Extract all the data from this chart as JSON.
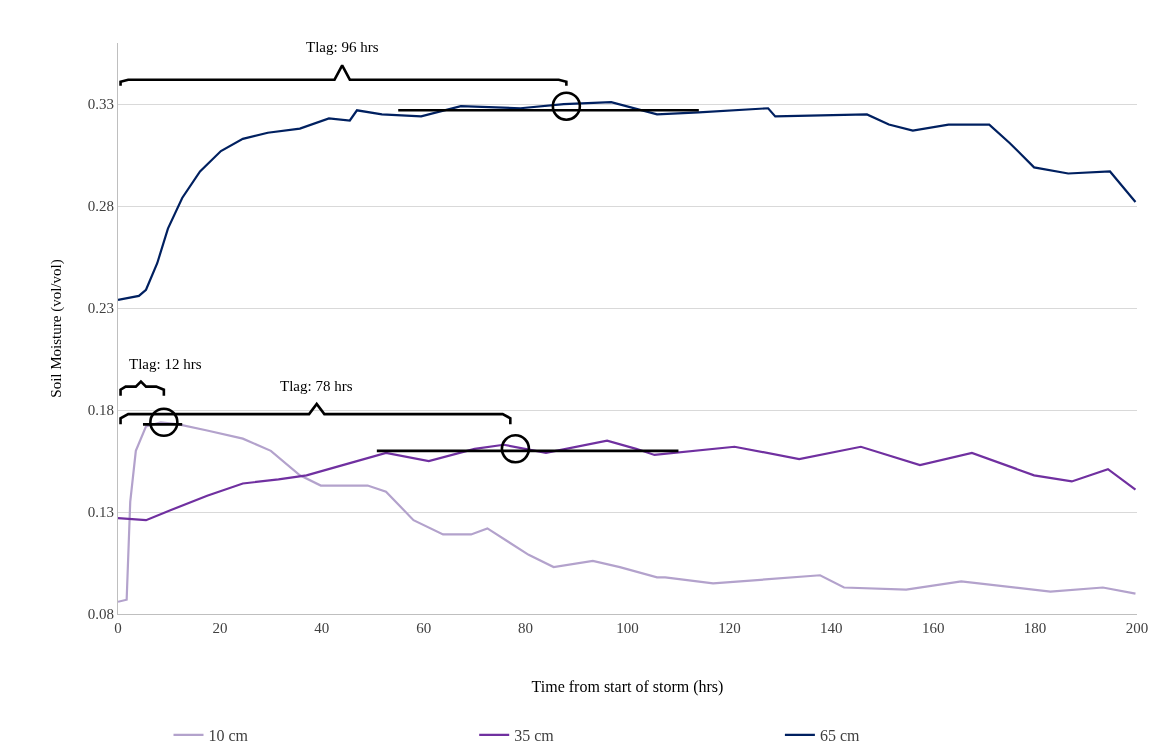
{
  "chart_data": {
    "type": "line",
    "xlabel": "Time from start of storm (hrs)",
    "ylabel": "Soil Moisture (vol/vol)",
    "xlim": [
      0,
      200
    ],
    "xticks": [
      0,
      20,
      40,
      60,
      80,
      100,
      120,
      140,
      160,
      180,
      200
    ],
    "ylim": [
      0.08,
      0.36
    ],
    "yticks": [
      0.08,
      0.13,
      0.18,
      0.23,
      0.28,
      0.33
    ],
    "grid": "y",
    "legend": "bottom",
    "line_style": "solid",
    "series": [
      {
        "name": "10 cm",
        "color": "#b3a2cc",
        "x": [
          0,
          1.7,
          2.4,
          3.5,
          5.5,
          8.4,
          11.9,
          17.5,
          24.5,
          30,
          35.7,
          39.8,
          49,
          52.6,
          58,
          63.8,
          69.3,
          72.5,
          80.6,
          85.5,
          93.2,
          98.5,
          105.8,
          107.4,
          116.8,
          137.8,
          142.5,
          154.7,
          165.5,
          183,
          193.3,
          199.7
        ],
        "values": [
          0.086,
          0.087,
          0.135,
          0.16,
          0.172,
          0.174,
          0.173,
          0.17,
          0.166,
          0.16,
          0.148,
          0.143,
          0.143,
          0.14,
          0.126,
          0.119,
          0.119,
          0.122,
          0.109,
          0.103,
          0.106,
          0.103,
          0.098,
          0.098,
          0.095,
          0.099,
          0.093,
          0.092,
          0.096,
          0.091,
          0.093,
          0.09
        ]
      },
      {
        "name": "35 cm",
        "color": "#7030a0",
        "x": [
          0,
          5.5,
          10.4,
          17.5,
          24.5,
          31.5,
          37,
          45.5,
          52.6,
          61,
          70,
          75.7,
          84,
          96,
          101.7,
          105.3,
          121,
          133.7,
          145.8,
          157.4,
          167.6,
          179.8,
          187.2,
          194.3,
          199.7
        ],
        "values": [
          0.127,
          0.126,
          0.131,
          0.138,
          0.144,
          0.146,
          0.148,
          0.154,
          0.159,
          0.155,
          0.161,
          0.163,
          0.159,
          0.165,
          0.161,
          0.158,
          0.162,
          0.156,
          0.162,
          0.153,
          0.159,
          0.148,
          0.145,
          0.151,
          0.141
        ]
      },
      {
        "name": "65 cm",
        "color": "#002060",
        "x": [
          0,
          4.1,
          5.5,
          7.7,
          9.8,
          12.6,
          16.1,
          20.2,
          24.5,
          29.4,
          35.7,
          41.4,
          45.5,
          46.9,
          51.8,
          59.5,
          67.3,
          79,
          87.5,
          96.8,
          105.8,
          114,
          127.6,
          129,
          147,
          151.3,
          156,
          163,
          171,
          175,
          179.8,
          186.5,
          194.7,
          199.7
        ],
        "values": [
          0.234,
          0.236,
          0.239,
          0.252,
          0.269,
          0.284,
          0.297,
          0.307,
          0.313,
          0.316,
          0.318,
          0.323,
          0.322,
          0.327,
          0.325,
          0.324,
          0.329,
          0.328,
          0.33,
          0.331,
          0.325,
          0.326,
          0.328,
          0.324,
          0.325,
          0.32,
          0.317,
          0.32,
          0.32,
          0.311,
          0.299,
          0.296,
          0.297,
          0.282
        ]
      },
      {
        "type": "line",
        "color": "#000000",
        "x": [
          55,
          114
        ],
        "values": [
          0.327,
          0.327
        ]
      },
      {
        "type": "line",
        "color": "#000000",
        "x": [
          4.9,
          12.6
        ],
        "values": [
          0.173,
          0.173
        ]
      },
      {
        "type": "line",
        "color": "#000000",
        "x": [
          50.8,
          110
        ],
        "values": [
          0.16,
          0.16
        ]
      },
      {
        "type": "line",
        "color": "#000000",
        "x": [
          0.5,
          0.5,
          2,
          42.5,
          44,
          45.5,
          86.5,
          88,
          88
        ],
        "values": [
          0.339,
          0.341,
          0.342,
          0.342,
          0.349,
          0.342,
          0.342,
          0.341,
          0.339
        ]
      },
      {
        "type": "line",
        "color": "#000000",
        "x": [
          0.5,
          0.5,
          1.5,
          3.5,
          4.5,
          5.5,
          7.5,
          9,
          9
        ],
        "values": [
          0.187,
          0.19,
          0.1915,
          0.1915,
          0.194,
          0.1915,
          0.1915,
          0.19,
          0.187
        ]
      },
      {
        "type": "line",
        "color": "#000000",
        "x": [
          0.5,
          0.5,
          2,
          37.5,
          39,
          40.5,
          75.5,
          77,
          77
        ],
        "values": [
          0.173,
          0.176,
          0.178,
          0.178,
          0.183,
          0.178,
          0.178,
          0.176,
          0.173
        ]
      },
      {
        "type": "scatter",
        "marker": "circle",
        "color": "#000000",
        "x": [
          88,
          9,
          78
        ],
        "values": [
          0.329,
          0.174,
          0.161
        ]
      }
    ],
    "annotations": [
      {
        "text": "Tlag: 96 hrs",
        "x": 44,
        "y": 0.349
      },
      {
        "text": "Tlag: 12 hrs",
        "x": 4.5,
        "y": 0.194
      },
      {
        "text": "Tlag: 78 hrs",
        "x": 39,
        "y": 0.183
      }
    ]
  }
}
